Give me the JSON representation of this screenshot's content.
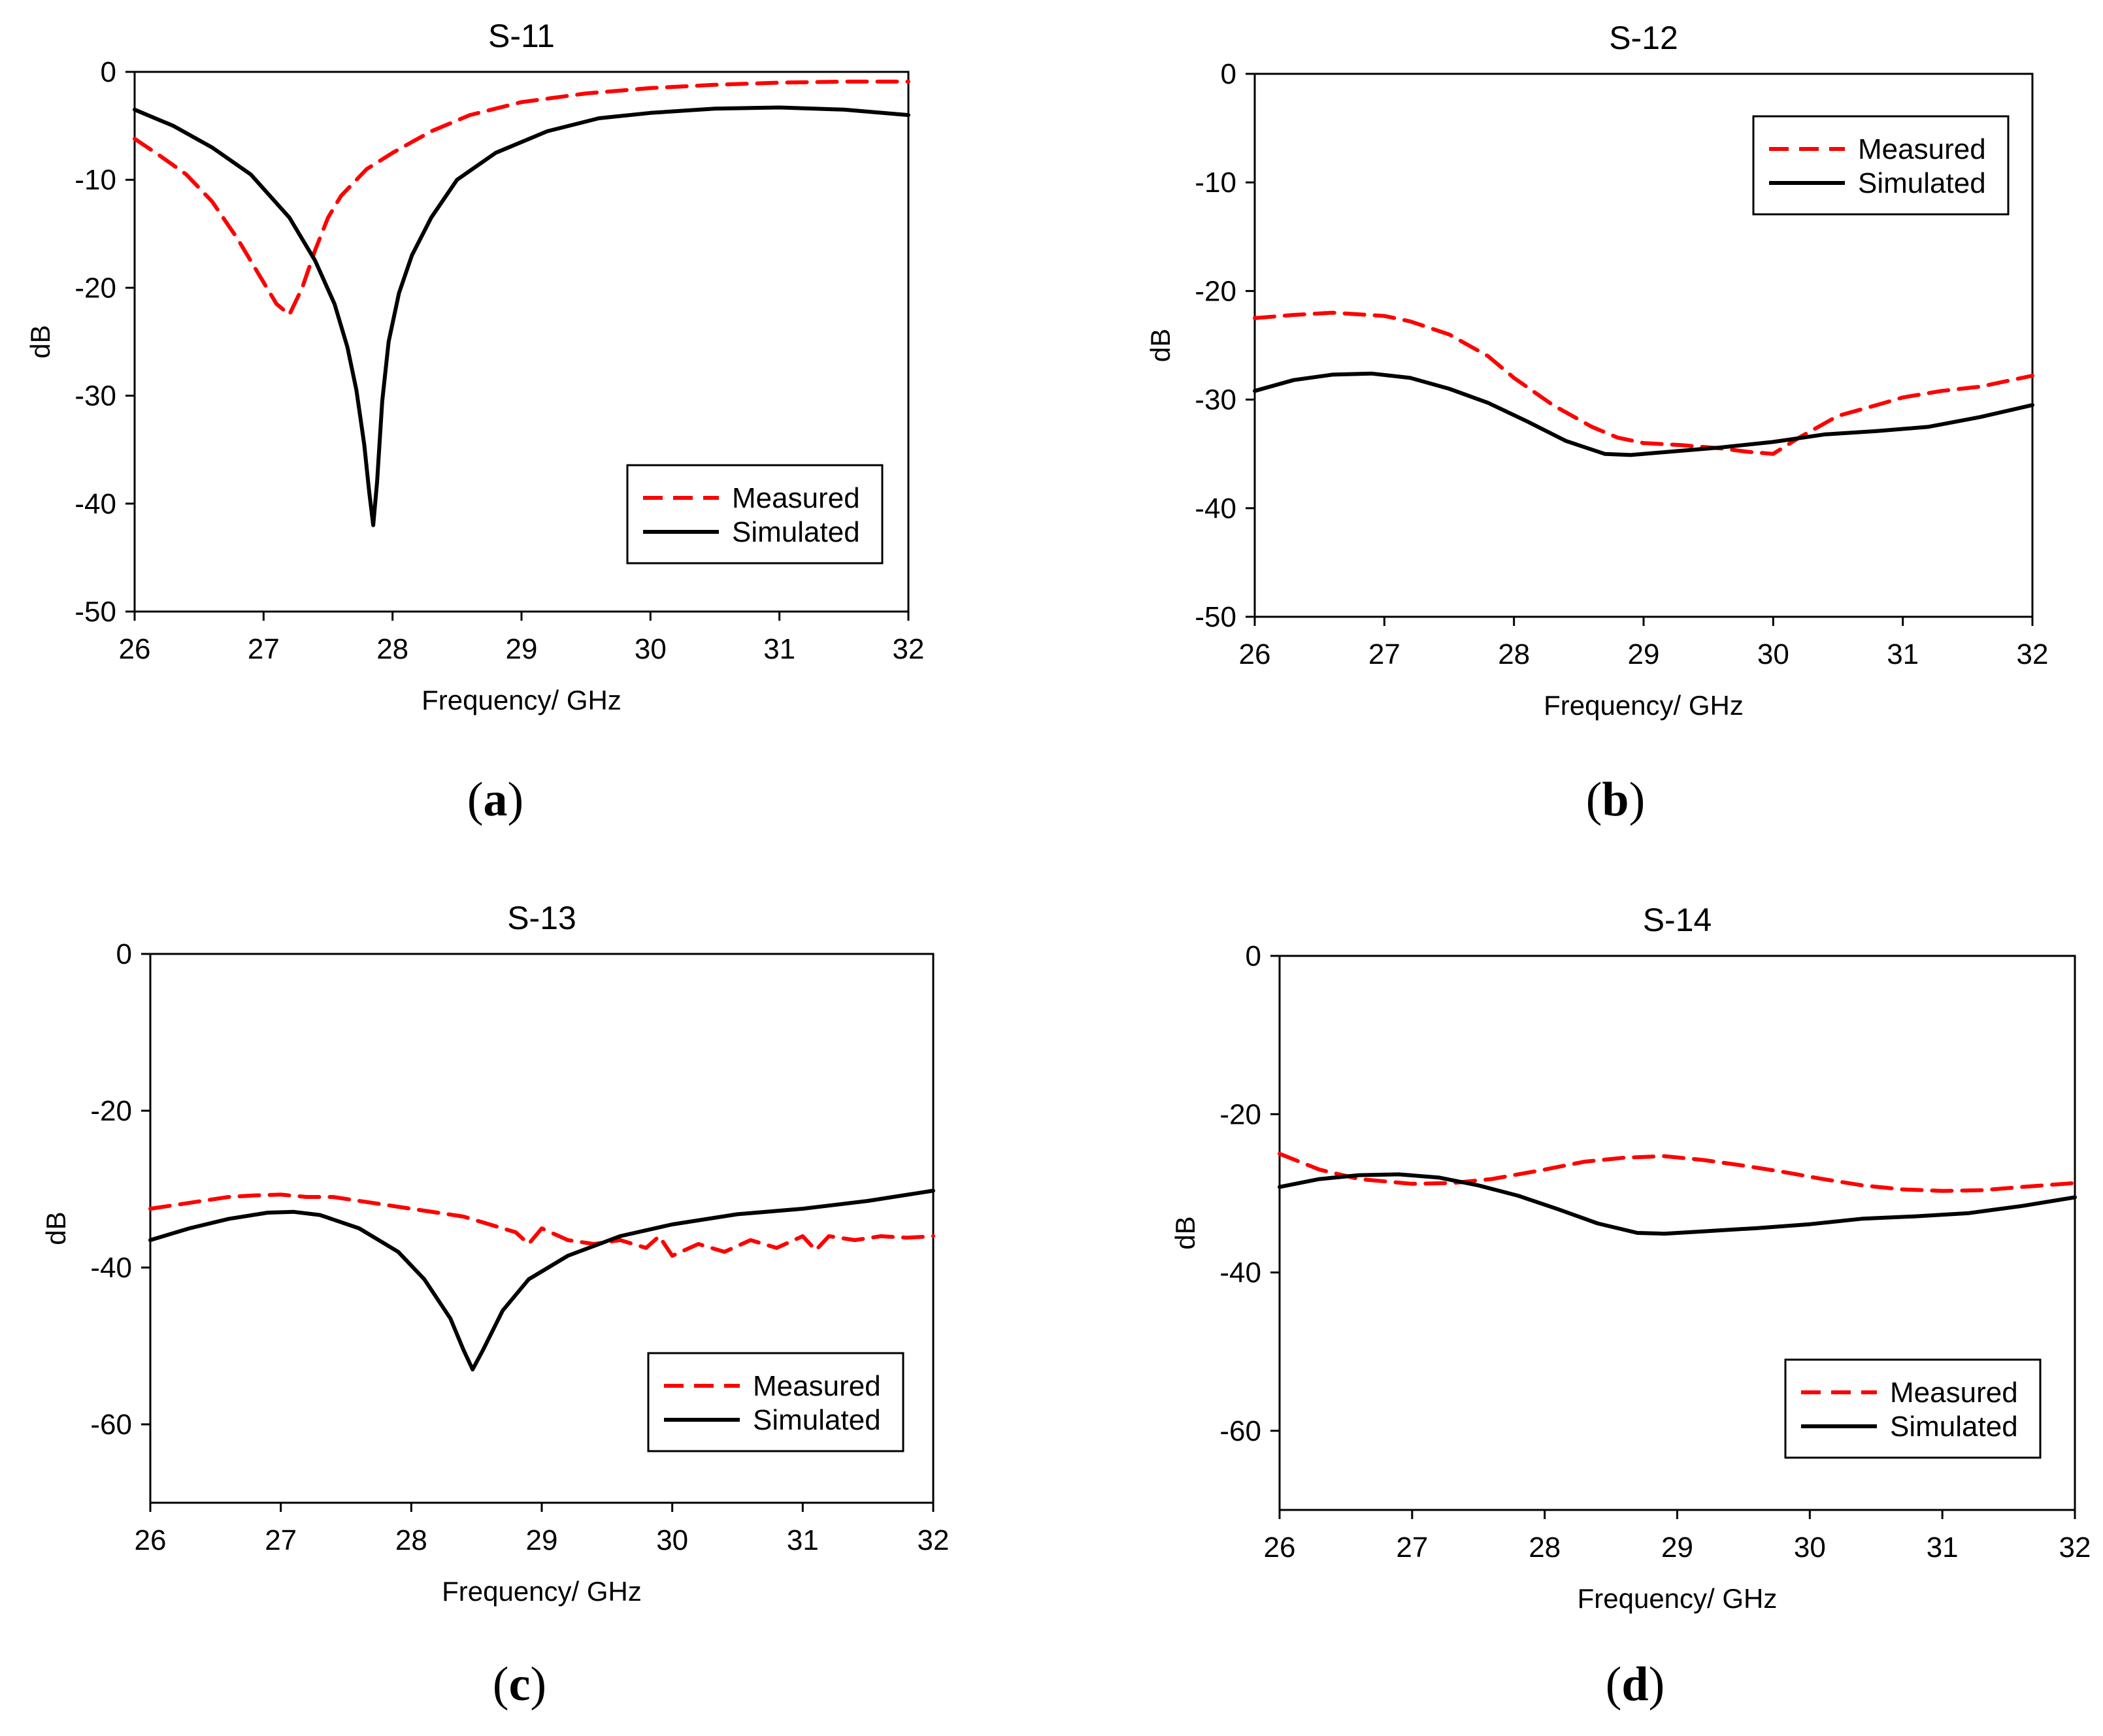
{
  "colors": {
    "measured": "#ff0000",
    "simulated": "#000000",
    "grid": "#a0a0a0"
  },
  "chart_data": [
    {
      "panel": "(a)",
      "panel_letter": "a",
      "type": "line",
      "title": "S-11",
      "xlabel": "Frequency/ GHz",
      "ylabel": "dB",
      "xlim": [
        26,
        32
      ],
      "ylim": [
        -50,
        0
      ],
      "xticks": [
        26,
        27,
        28,
        29,
        30,
        31,
        32
      ],
      "yticks": [
        0,
        -10,
        -20,
        -30,
        -40,
        -50
      ],
      "legend_position": "bottom-right",
      "grid": true,
      "series": [
        {
          "name": "Measured",
          "style": "dashed",
          "color": "#ff0000",
          "x": [
            26.0,
            26.2,
            26.4,
            26.6,
            26.8,
            27.0,
            27.1,
            27.2,
            27.3,
            27.4,
            27.5,
            27.6,
            27.8,
            28.0,
            28.3,
            28.6,
            29.0,
            29.5,
            30.0,
            30.5,
            31.0,
            31.5,
            32.0
          ],
          "y": [
            -6.2,
            -7.8,
            -9.5,
            -12.0,
            -15.5,
            -19.5,
            -21.5,
            -22.5,
            -20.0,
            -16.5,
            -13.5,
            -11.5,
            -9.0,
            -7.5,
            -5.5,
            -4.0,
            -2.8,
            -2.0,
            -1.5,
            -1.2,
            -1.0,
            -0.9,
            -0.9
          ]
        },
        {
          "name": "Simulated",
          "style": "solid",
          "color": "#000000",
          "x": [
            26.0,
            26.3,
            26.6,
            26.9,
            27.2,
            27.4,
            27.55,
            27.65,
            27.72,
            27.78,
            27.82,
            27.85,
            27.88,
            27.92,
            27.97,
            28.05,
            28.15,
            28.3,
            28.5,
            28.8,
            29.2,
            29.6,
            30.0,
            30.5,
            31.0,
            31.5,
            32.0
          ],
          "y": [
            -3.5,
            -5.0,
            -7.0,
            -9.5,
            -13.5,
            -17.5,
            -21.5,
            -25.5,
            -29.5,
            -34.5,
            -39.0,
            -42.0,
            -38.0,
            -30.5,
            -25.0,
            -20.5,
            -17.0,
            -13.5,
            -10.0,
            -7.5,
            -5.5,
            -4.3,
            -3.8,
            -3.4,
            -3.3,
            -3.5,
            -4.0
          ]
        }
      ]
    },
    {
      "panel": "(b)",
      "panel_letter": "b",
      "type": "line",
      "title": "S-12",
      "xlabel": "Frequency/ GHz",
      "ylabel": "dB",
      "xlim": [
        26,
        32
      ],
      "ylim": [
        -50,
        0
      ],
      "xticks": [
        26,
        27,
        28,
        29,
        30,
        31,
        32
      ],
      "yticks": [
        0,
        -10,
        -20,
        -30,
        -40,
        -50
      ],
      "legend_position": "top-right",
      "grid": true,
      "series": [
        {
          "name": "Measured",
          "style": "dashed",
          "color": "#ff0000",
          "x": [
            26.0,
            26.3,
            26.6,
            27.0,
            27.2,
            27.5,
            27.8,
            28.0,
            28.3,
            28.6,
            28.8,
            29.0,
            29.3,
            29.6,
            29.8,
            30.0,
            30.2,
            30.5,
            30.8,
            31.0,
            31.3,
            31.6,
            32.0
          ],
          "y": [
            -22.5,
            -22.2,
            -22.0,
            -22.3,
            -22.8,
            -24.0,
            -26.0,
            -28.0,
            -30.5,
            -32.5,
            -33.5,
            -34.0,
            -34.2,
            -34.5,
            -34.8,
            -35.0,
            -33.5,
            -31.5,
            -30.5,
            -29.8,
            -29.2,
            -28.8,
            -27.8
          ]
        },
        {
          "name": "Simulated",
          "style": "solid",
          "color": "#000000",
          "x": [
            26.0,
            26.3,
            26.6,
            26.9,
            27.2,
            27.5,
            27.8,
            28.1,
            28.4,
            28.7,
            28.9,
            29.2,
            29.6,
            30.0,
            30.4,
            30.8,
            31.2,
            31.6,
            32.0
          ],
          "y": [
            -29.2,
            -28.2,
            -27.7,
            -27.6,
            -28.0,
            -29.0,
            -30.3,
            -32.0,
            -33.8,
            -35.0,
            -35.1,
            -34.8,
            -34.4,
            -33.9,
            -33.2,
            -32.9,
            -32.5,
            -31.6,
            -30.5
          ]
        }
      ]
    },
    {
      "panel": "(c)",
      "panel_letter": "c",
      "type": "line",
      "title": "S-13",
      "xlabel": "Frequency/ GHz",
      "ylabel": "dB",
      "xlim": [
        26,
        32
      ],
      "ylim": [
        -70,
        0
      ],
      "xticks": [
        26,
        27,
        28,
        29,
        30,
        31,
        32
      ],
      "yticks": [
        0,
        -20,
        -40,
        -60
      ],
      "legend_position": "bottom-right",
      "grid": true,
      "series": [
        {
          "name": "Measured",
          "style": "dashed",
          "color": "#ff0000",
          "x": [
            26.0,
            26.2,
            26.4,
            26.6,
            26.8,
            27.0,
            27.2,
            27.4,
            27.6,
            27.8,
            28.0,
            28.2,
            28.4,
            28.6,
            28.8,
            28.9,
            29.0,
            29.2,
            29.4,
            29.6,
            29.8,
            29.9,
            30.0,
            30.2,
            30.4,
            30.6,
            30.8,
            31.0,
            31.1,
            31.2,
            31.4,
            31.6,
            31.8,
            32.0
          ],
          "y": [
            -32.5,
            -32.0,
            -31.5,
            -31.0,
            -30.8,
            -30.7,
            -31.0,
            -31.0,
            -31.5,
            -32.0,
            -32.5,
            -33.0,
            -33.5,
            -34.5,
            -35.5,
            -37.0,
            -35.0,
            -36.5,
            -37.0,
            -36.5,
            -37.5,
            -36.0,
            -38.5,
            -37.0,
            -38.0,
            -36.5,
            -37.5,
            -36.0,
            -37.8,
            -36.0,
            -36.5,
            -36.0,
            -36.2,
            -36.0
          ]
        },
        {
          "name": "Simulated",
          "style": "solid",
          "color": "#000000",
          "x": [
            26.0,
            26.3,
            26.6,
            26.9,
            27.1,
            27.3,
            27.6,
            27.9,
            28.1,
            28.3,
            28.4,
            28.47,
            28.55,
            28.7,
            28.9,
            29.2,
            29.6,
            30.0,
            30.5,
            31.0,
            31.5,
            32.0
          ],
          "y": [
            -36.5,
            -35.0,
            -33.8,
            -33.0,
            -32.9,
            -33.3,
            -35.0,
            -38.0,
            -41.5,
            -46.5,
            -50.5,
            -53.0,
            -50.5,
            -45.5,
            -41.5,
            -38.5,
            -36.0,
            -34.5,
            -33.2,
            -32.5,
            -31.5,
            -30.2
          ]
        }
      ]
    },
    {
      "panel": "(d)",
      "panel_letter": "d",
      "type": "line",
      "title": "S-14",
      "xlabel": "Frequency/ GHz",
      "ylabel": "dB",
      "xlim": [
        26,
        32
      ],
      "ylim": [
        -70,
        0
      ],
      "xticks": [
        26,
        27,
        28,
        29,
        30,
        31,
        32
      ],
      "yticks": [
        0,
        -20,
        -40,
        -60
      ],
      "legend_position": "bottom-right",
      "grid": true,
      "series": [
        {
          "name": "Measured",
          "style": "dashed",
          "color": "#ff0000",
          "x": [
            26.0,
            26.3,
            26.6,
            27.0,
            27.3,
            27.6,
            28.0,
            28.3,
            28.6,
            28.9,
            29.2,
            29.5,
            29.8,
            30.1,
            30.4,
            30.7,
            31.0,
            31.3,
            31.6,
            32.0
          ],
          "y": [
            -25.0,
            -27.0,
            -28.2,
            -28.8,
            -28.7,
            -28.2,
            -27.0,
            -26.0,
            -25.5,
            -25.3,
            -25.8,
            -26.5,
            -27.3,
            -28.2,
            -29.0,
            -29.5,
            -29.7,
            -29.6,
            -29.2,
            -28.7
          ]
        },
        {
          "name": "Simulated",
          "style": "solid",
          "color": "#000000",
          "x": [
            26.0,
            26.3,
            26.6,
            26.9,
            27.2,
            27.5,
            27.8,
            28.1,
            28.4,
            28.7,
            28.9,
            29.2,
            29.6,
            30.0,
            30.4,
            30.8,
            31.2,
            31.6,
            32.0
          ],
          "y": [
            -29.2,
            -28.2,
            -27.7,
            -27.6,
            -28.0,
            -29.0,
            -30.3,
            -32.0,
            -33.8,
            -35.0,
            -35.1,
            -34.8,
            -34.4,
            -33.9,
            -33.2,
            -32.9,
            -32.5,
            -31.6,
            -30.5
          ]
        }
      ]
    }
  ]
}
